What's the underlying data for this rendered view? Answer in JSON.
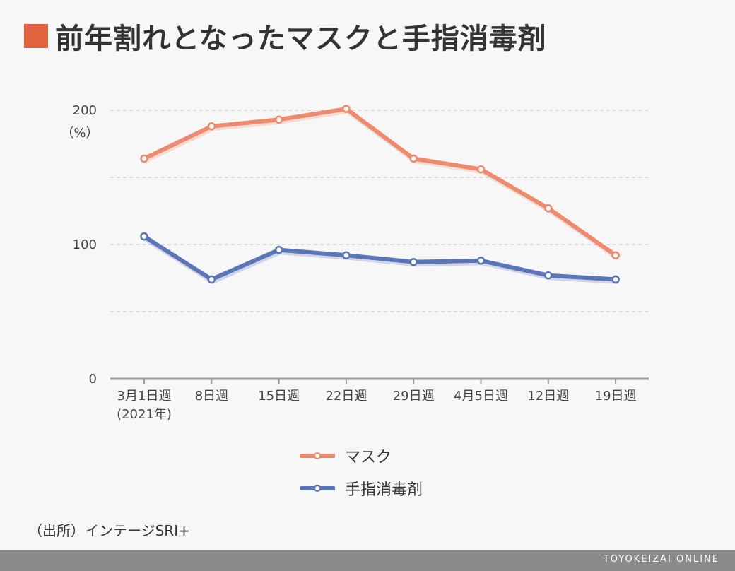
{
  "title": "前年割れとなったマスクと手指消毒剤",
  "source": "（出所）インテージSRI+",
  "footer": "TOYOKEIZAI ONLINE",
  "colors": {
    "accent": "#e0633f",
    "mask": "#ee8a6e",
    "sanitizer": "#5a75b8"
  },
  "chart_data": {
    "type": "line",
    "unit": "（%）",
    "ylim": [
      0,
      200
    ],
    "yticks": [
      "0",
      "100",
      "200"
    ],
    "grid": true,
    "legend_placement": "bottom",
    "categories": [
      "3月1日週",
      "8日週",
      "15日週",
      "22日週",
      "29日週",
      "4月5日週",
      "12日週",
      "19日週"
    ],
    "first_category_note": "(2021年)",
    "series": [
      {
        "name": "マスク",
        "values": [
          164,
          188,
          193,
          201,
          164,
          156,
          127,
          92
        ]
      },
      {
        "name": "手指消毒剤",
        "values": [
          106,
          74,
          96,
          92,
          87,
          88,
          77,
          74
        ]
      }
    ]
  }
}
